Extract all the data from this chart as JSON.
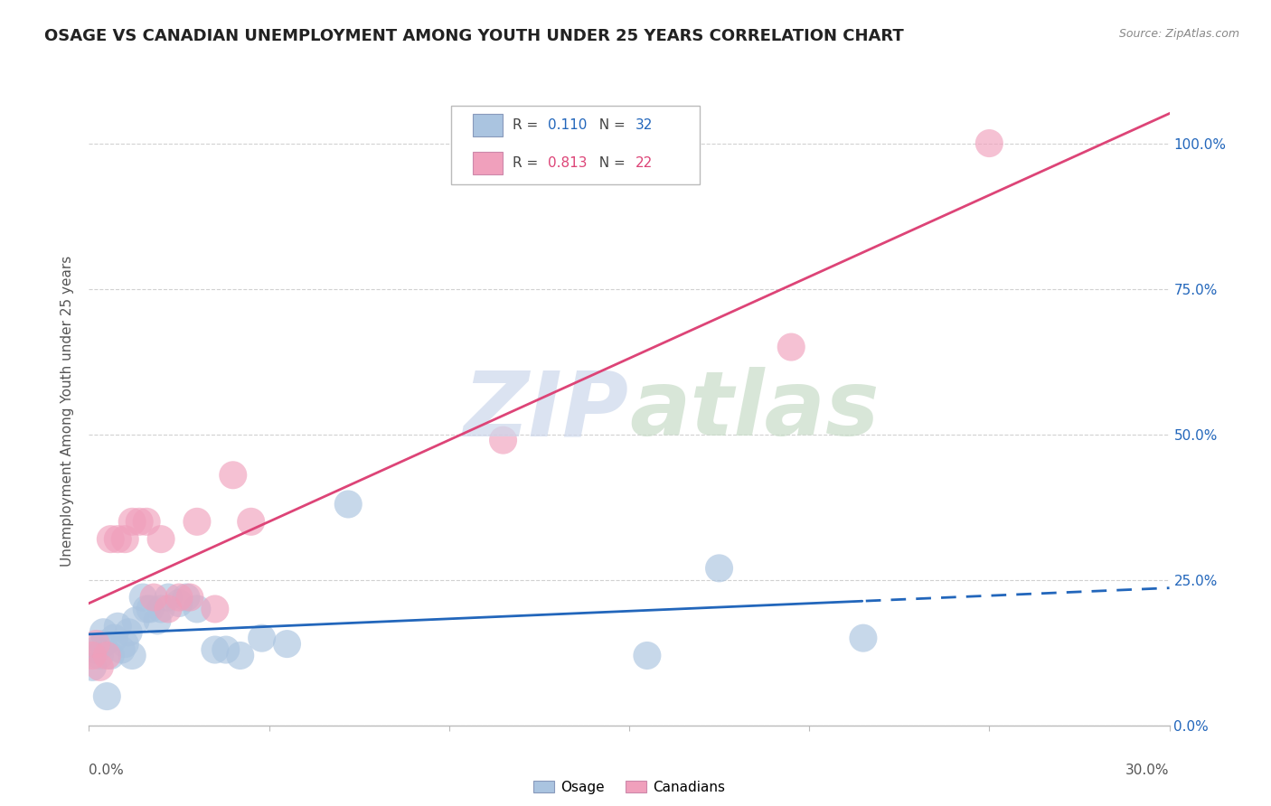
{
  "title": "OSAGE VS CANADIAN UNEMPLOYMENT AMONG YOUTH UNDER 25 YEARS CORRELATION CHART",
  "source": "Source: ZipAtlas.com",
  "ylabel": "Unemployment Among Youth under 25 years",
  "legend_osage": "Osage",
  "legend_canadians": "Canadians",
  "r_osage": "0.110",
  "n_osage": "32",
  "r_canadians": "0.813",
  "n_canadians": "22",
  "osage_color": "#aac4e0",
  "osage_line_color": "#2266bb",
  "canadians_color": "#f0a0bc",
  "canadians_line_color": "#dd4477",
  "background_color": "#ffffff",
  "xlim": [
    0.0,
    0.3
  ],
  "ylim": [
    0.0,
    1.08
  ],
  "ytick_values": [
    0.0,
    0.25,
    0.5,
    0.75,
    1.0
  ],
  "ytick_labels": [
    "0.0%",
    "25.0%",
    "50.0%",
    "75.0%",
    "100.0%"
  ],
  "osage_x": [
    0.001,
    0.002,
    0.003,
    0.004,
    0.004,
    0.005,
    0.006,
    0.007,
    0.008,
    0.009,
    0.01,
    0.011,
    0.012,
    0.013,
    0.015,
    0.016,
    0.017,
    0.019,
    0.02,
    0.022,
    0.025,
    0.027,
    0.03,
    0.035,
    0.038,
    0.042,
    0.048,
    0.055,
    0.072,
    0.155,
    0.175,
    0.215
  ],
  "osage_y": [
    0.1,
    0.13,
    0.12,
    0.14,
    0.16,
    0.05,
    0.12,
    0.15,
    0.17,
    0.13,
    0.14,
    0.16,
    0.12,
    0.18,
    0.22,
    0.2,
    0.2,
    0.18,
    0.2,
    0.22,
    0.21,
    0.22,
    0.2,
    0.13,
    0.13,
    0.12,
    0.15,
    0.14,
    0.38,
    0.12,
    0.27,
    0.15
  ],
  "canadians_x": [
    0.001,
    0.002,
    0.003,
    0.005,
    0.006,
    0.008,
    0.01,
    0.012,
    0.014,
    0.016,
    0.018,
    0.02,
    0.022,
    0.025,
    0.028,
    0.03,
    0.035,
    0.04,
    0.045,
    0.115,
    0.195,
    0.25
  ],
  "canadians_y": [
    0.12,
    0.14,
    0.1,
    0.12,
    0.32,
    0.32,
    0.32,
    0.35,
    0.35,
    0.35,
    0.22,
    0.32,
    0.2,
    0.22,
    0.22,
    0.35,
    0.2,
    0.43,
    0.35,
    0.49,
    0.65,
    1.0
  ]
}
